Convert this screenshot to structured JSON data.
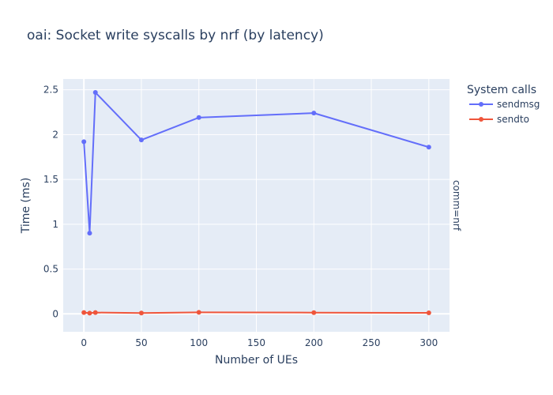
{
  "chart_data": {
    "type": "line",
    "title": "oai: Socket write syscalls by nrf (by latency)",
    "xlabel": "Number of UEs",
    "ylabel": "Time (ms)",
    "xlim": [
      -18,
      318
    ],
    "ylim": [
      -0.2,
      2.62
    ],
    "x_ticks": [
      0,
      50,
      100,
      150,
      200,
      250,
      300
    ],
    "y_ticks": [
      0,
      0.5,
      1,
      1.5,
      2,
      2.5
    ],
    "x_tick_labels": [
      "0",
      "50",
      "100",
      "150",
      "200",
      "250",
      "300"
    ],
    "y_tick_labels": [
      "0",
      "0.5",
      "1",
      "1.5",
      "2",
      "2.5"
    ],
    "grid": true,
    "legend_title": "System calls",
    "legend_position": "top-right",
    "facet_label": "comm=nrf",
    "series": [
      {
        "name": "sendmsg",
        "color": "#636efa",
        "x": [
          0,
          5,
          10,
          50,
          100,
          200,
          300
        ],
        "y": [
          1.92,
          0.9,
          2.47,
          1.94,
          2.19,
          2.24,
          1.86
        ]
      },
      {
        "name": "sendto",
        "color": "#ef553b",
        "x": [
          0,
          5,
          10,
          50,
          100,
          200,
          300
        ],
        "y": [
          0.015,
          0.008,
          0.015,
          0.009,
          0.017,
          0.014,
          0.011
        ]
      }
    ]
  }
}
